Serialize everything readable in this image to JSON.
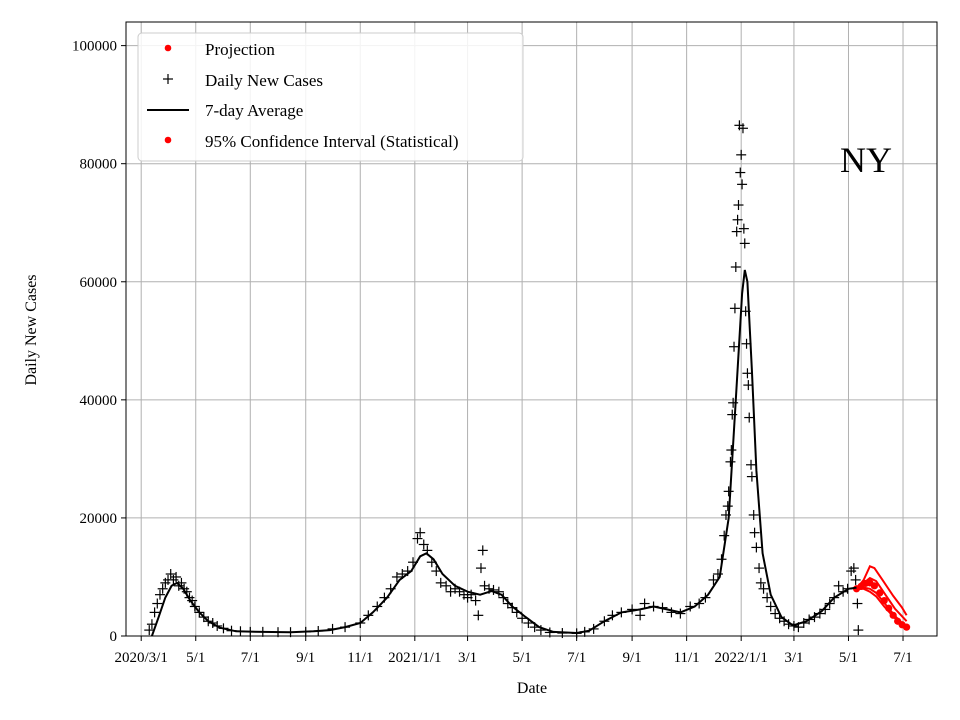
{
  "chart_data": {
    "type": "line",
    "title": "",
    "xlabel": "Date",
    "ylabel": "Daily New Cases",
    "annotation": "NY",
    "grid": true,
    "legend_position": "top-left",
    "xlim": [
      "2020-02-13",
      "2022-08-08"
    ],
    "ylim": [
      0,
      104000
    ],
    "x_ticks": [
      {
        "date": "2020-03-01",
        "label": "2020/3/1"
      },
      {
        "date": "2020-05-01",
        "label": "5/1"
      },
      {
        "date": "2020-07-01",
        "label": "7/1"
      },
      {
        "date": "2020-09-01",
        "label": "9/1"
      },
      {
        "date": "2020-11-01",
        "label": "11/1"
      },
      {
        "date": "2021-01-01",
        "label": "2021/1/1"
      },
      {
        "date": "2021-03-01",
        "label": "3/1"
      },
      {
        "date": "2021-05-01",
        "label": "5/1"
      },
      {
        "date": "2021-07-01",
        "label": "7/1"
      },
      {
        "date": "2021-09-01",
        "label": "9/1"
      },
      {
        "date": "2021-11-01",
        "label": "11/1"
      },
      {
        "date": "2022-01-01",
        "label": "2022/1/1"
      },
      {
        "date": "2022-03-01",
        "label": "3/1"
      },
      {
        "date": "2022-05-01",
        "label": "5/1"
      },
      {
        "date": "2022-07-01",
        "label": "7/1"
      }
    ],
    "y_ticks": [
      0,
      20000,
      40000,
      60000,
      80000,
      100000
    ],
    "legend": [
      {
        "label": "Projection",
        "marker": "dot",
        "color": "#ff0000"
      },
      {
        "label": "Daily New Cases",
        "marker": "plus",
        "color": "#000000"
      },
      {
        "label": "7-day Average",
        "marker": "line",
        "color": "#000000"
      },
      {
        "label": "95% Confidence Interval (Statistical)",
        "marker": "dot",
        "color": "#ff0000"
      }
    ],
    "series": [
      {
        "name": "7-day Average",
        "color": "#000000",
        "points": [
          [
            "2020-03-13",
            0
          ],
          [
            "2020-03-20",
            3000
          ],
          [
            "2020-03-28",
            6500
          ],
          [
            "2020-04-04",
            8500
          ],
          [
            "2020-04-10",
            9000
          ],
          [
            "2020-04-17",
            8000
          ],
          [
            "2020-04-25",
            6000
          ],
          [
            "2020-05-05",
            4000
          ],
          [
            "2020-05-15",
            2500
          ],
          [
            "2020-05-28",
            1400
          ],
          [
            "2020-06-15",
            800
          ],
          [
            "2020-07-15",
            700
          ],
          [
            "2020-08-15",
            650
          ],
          [
            "2020-09-10",
            800
          ],
          [
            "2020-09-28",
            1000
          ],
          [
            "2020-10-15",
            1500
          ],
          [
            "2020-11-01",
            2200
          ],
          [
            "2020-11-15",
            4000
          ],
          [
            "2020-12-01",
            6500
          ],
          [
            "2020-12-15",
            9500
          ],
          [
            "2020-12-28",
            11000
          ],
          [
            "2021-01-07",
            13500
          ],
          [
            "2021-01-14",
            14000
          ],
          [
            "2021-01-22",
            13000
          ],
          [
            "2021-02-01",
            10500
          ],
          [
            "2021-02-15",
            8500
          ],
          [
            "2021-03-01",
            7500
          ],
          [
            "2021-03-15",
            7000
          ],
          [
            "2021-03-28",
            7600
          ],
          [
            "2021-04-08",
            7000
          ],
          [
            "2021-04-20",
            5000
          ],
          [
            "2021-05-05",
            3200
          ],
          [
            "2021-05-20",
            1500
          ],
          [
            "2021-06-05",
            700
          ],
          [
            "2021-07-01",
            500
          ],
          [
            "2021-07-15",
            900
          ],
          [
            "2021-08-01",
            2500
          ],
          [
            "2021-08-20",
            4000
          ],
          [
            "2021-09-10",
            4500
          ],
          [
            "2021-09-25",
            5000
          ],
          [
            "2021-10-10",
            4500
          ],
          [
            "2021-10-25",
            4000
          ],
          [
            "2021-11-10",
            5000
          ],
          [
            "2021-11-25",
            7000
          ],
          [
            "2021-12-08",
            10000
          ],
          [
            "2021-12-18",
            20000
          ],
          [
            "2021-12-26",
            40000
          ],
          [
            "2022-01-02",
            58000
          ],
          [
            "2022-01-05",
            62000
          ],
          [
            "2022-01-08",
            60000
          ],
          [
            "2022-01-13",
            45000
          ],
          [
            "2022-01-18",
            28000
          ],
          [
            "2022-01-25",
            14000
          ],
          [
            "2022-02-03",
            7000
          ],
          [
            "2022-02-15",
            3200
          ],
          [
            "2022-02-28",
            1800
          ],
          [
            "2022-03-15",
            2500
          ],
          [
            "2022-04-01",
            4200
          ],
          [
            "2022-04-15",
            6500
          ],
          [
            "2022-05-01",
            8000
          ],
          [
            "2022-05-10",
            8200
          ]
        ]
      },
      {
        "name": "Daily New Cases",
        "color": "#000000",
        "points": [
          [
            "2020-03-10",
            1000
          ],
          [
            "2020-03-13",
            2000
          ],
          [
            "2020-03-16",
            4000
          ],
          [
            "2020-03-19",
            5500
          ],
          [
            "2020-03-22",
            7000
          ],
          [
            "2020-03-25",
            8000
          ],
          [
            "2020-03-28",
            9000
          ],
          [
            "2020-03-31",
            9500
          ],
          [
            "2020-04-03",
            10500
          ],
          [
            "2020-04-06",
            9500
          ],
          [
            "2020-04-09",
            10000
          ],
          [
            "2020-04-12",
            8500
          ],
          [
            "2020-04-15",
            9000
          ],
          [
            "2020-04-18",
            8000
          ],
          [
            "2020-04-21",
            7500
          ],
          [
            "2020-04-24",
            6500
          ],
          [
            "2020-04-27",
            6000
          ],
          [
            "2020-04-30",
            5000
          ],
          [
            "2020-05-05",
            4000
          ],
          [
            "2020-05-10",
            3200
          ],
          [
            "2020-05-15",
            2500
          ],
          [
            "2020-05-20",
            2200
          ],
          [
            "2020-05-25",
            1700
          ],
          [
            "2020-06-01",
            1300
          ],
          [
            "2020-06-10",
            900
          ],
          [
            "2020-06-20",
            800
          ],
          [
            "2020-07-01",
            700
          ],
          [
            "2020-07-15",
            700
          ],
          [
            "2020-08-01",
            650
          ],
          [
            "2020-08-15",
            650
          ],
          [
            "2020-09-01",
            700
          ],
          [
            "2020-09-15",
            850
          ],
          [
            "2020-10-01",
            1200
          ],
          [
            "2020-10-15",
            1500
          ],
          [
            "2020-11-01",
            2200
          ],
          [
            "2020-11-10",
            3500
          ],
          [
            "2020-11-20",
            5000
          ],
          [
            "2020-11-28",
            6500
          ],
          [
            "2020-12-05",
            8000
          ],
          [
            "2020-12-12",
            10000
          ],
          [
            "2020-12-18",
            10500
          ],
          [
            "2020-12-24",
            11000
          ],
          [
            "2020-12-30",
            12500
          ],
          [
            "2021-01-04",
            16500
          ],
          [
            "2021-01-07",
            17500
          ],
          [
            "2021-01-11",
            15500
          ],
          [
            "2021-01-15",
            14500
          ],
          [
            "2021-01-20",
            12500
          ],
          [
            "2021-01-25",
            11000
          ],
          [
            "2021-01-30",
            9000
          ],
          [
            "2021-02-05",
            8500
          ],
          [
            "2021-02-10",
            7500
          ],
          [
            "2021-02-15",
            8000
          ],
          [
            "2021-02-20",
            7500
          ],
          [
            "2021-02-25",
            7000
          ],
          [
            "2021-03-01",
            6500
          ],
          [
            "2021-03-05",
            7000
          ],
          [
            "2021-03-10",
            6000
          ],
          [
            "2021-03-13",
            3500
          ],
          [
            "2021-03-16",
            11500
          ],
          [
            "2021-03-18",
            14500
          ],
          [
            "2021-03-20",
            8500
          ],
          [
            "2021-03-25",
            8000
          ],
          [
            "2021-03-30",
            7800
          ],
          [
            "2021-04-05",
            7500
          ],
          [
            "2021-04-10",
            6500
          ],
          [
            "2021-04-15",
            5500
          ],
          [
            "2021-04-20",
            4800
          ],
          [
            "2021-04-25",
            4000
          ],
          [
            "2021-05-01",
            3000
          ],
          [
            "2021-05-08",
            2200
          ],
          [
            "2021-05-15",
            1500
          ],
          [
            "2021-05-22",
            1000
          ],
          [
            "2021-06-01",
            600
          ],
          [
            "2021-06-15",
            500
          ],
          [
            "2021-07-01",
            450
          ],
          [
            "2021-07-10",
            700
          ],
          [
            "2021-07-20",
            1200
          ],
          [
            "2021-08-01",
            2500
          ],
          [
            "2021-08-10",
            3500
          ],
          [
            "2021-08-20",
            4000
          ],
          [
            "2021-09-01",
            4500
          ],
          [
            "2021-09-10",
            3500
          ],
          [
            "2021-09-15",
            5500
          ],
          [
            "2021-09-25",
            5000
          ],
          [
            "2021-10-05",
            4800
          ],
          [
            "2021-10-15",
            4000
          ],
          [
            "2021-10-25",
            3800
          ],
          [
            "2021-11-05",
            5000
          ],
          [
            "2021-11-15",
            5500
          ],
          [
            "2021-11-22",
            6500
          ],
          [
            "2021-12-01",
            9500
          ],
          [
            "2021-12-06",
            10500
          ],
          [
            "2021-12-10",
            13000
          ],
          [
            "2021-12-13",
            17000
          ],
          [
            "2021-12-15",
            20500
          ],
          [
            "2021-12-17",
            22000
          ],
          [
            "2021-12-18",
            24500
          ],
          [
            "2021-12-20",
            29500
          ],
          [
            "2021-12-21",
            31500
          ],
          [
            "2021-12-22",
            37500
          ],
          [
            "2021-12-23",
            39500
          ],
          [
            "2021-12-24",
            49000
          ],
          [
            "2021-12-25",
            55500
          ],
          [
            "2021-12-26",
            62500
          ],
          [
            "2021-12-27",
            68500
          ],
          [
            "2021-12-28",
            70500
          ],
          [
            "2021-12-29",
            73000
          ],
          [
            "2021-12-30",
            86500
          ],
          [
            "2021-12-31",
            78500
          ],
          [
            "2022-01-01",
            81500
          ],
          [
            "2022-01-02",
            76500
          ],
          [
            "2022-01-03",
            86000
          ],
          [
            "2022-01-04",
            69000
          ],
          [
            "2022-01-05",
            66500
          ],
          [
            "2022-01-06",
            55000
          ],
          [
            "2022-01-07",
            49500
          ],
          [
            "2022-01-08",
            44500
          ],
          [
            "2022-01-09",
            42500
          ],
          [
            "2022-01-10",
            37000
          ],
          [
            "2022-01-12",
            29000
          ],
          [
            "2022-01-13",
            27000
          ],
          [
            "2022-01-15",
            20500
          ],
          [
            "2022-01-16",
            17500
          ],
          [
            "2022-01-18",
            15000
          ],
          [
            "2022-01-21",
            11500
          ],
          [
            "2022-01-23",
            9000
          ],
          [
            "2022-01-26",
            8000
          ],
          [
            "2022-01-30",
            6500
          ],
          [
            "2022-02-03",
            5000
          ],
          [
            "2022-02-08",
            3800
          ],
          [
            "2022-02-13",
            3000
          ],
          [
            "2022-02-18",
            2500
          ],
          [
            "2022-02-23",
            2000
          ],
          [
            "2022-03-01",
            1700
          ],
          [
            "2022-03-06",
            1500
          ],
          [
            "2022-03-12",
            2200
          ],
          [
            "2022-03-18",
            2800
          ],
          [
            "2022-03-24",
            3200
          ],
          [
            "2022-03-30",
            3800
          ],
          [
            "2022-04-05",
            4500
          ],
          [
            "2022-04-10",
            5500
          ],
          [
            "2022-04-15",
            6500
          ],
          [
            "2022-04-20",
            8500
          ],
          [
            "2022-04-25",
            7500
          ],
          [
            "2022-04-30",
            8000
          ],
          [
            "2022-05-04",
            11000
          ],
          [
            "2022-05-07",
            11500
          ],
          [
            "2022-05-09",
            9500
          ],
          [
            "2022-05-11",
            5500
          ],
          [
            "2022-05-12",
            1000
          ]
        ]
      },
      {
        "name": "Projection",
        "color": "#ff0000",
        "points": [
          [
            "2022-05-10",
            8000
          ],
          [
            "2022-05-15",
            8400
          ],
          [
            "2022-05-20",
            8900
          ],
          [
            "2022-05-25",
            9000
          ],
          [
            "2022-05-30",
            8500
          ],
          [
            "2022-06-05",
            7300
          ],
          [
            "2022-06-10",
            6000
          ],
          [
            "2022-06-15",
            4700
          ],
          [
            "2022-06-20",
            3500
          ],
          [
            "2022-06-25",
            2500
          ],
          [
            "2022-06-30",
            1900
          ],
          [
            "2022-07-05",
            1500
          ]
        ]
      },
      {
        "name": "95% Confidence Interval (Statistical)",
        "color": "#ff0000",
        "bands": [
          [
            [
              "2022-05-10",
              8000
            ],
            [
              "2022-05-18",
              9500
            ],
            [
              "2022-05-25",
              11800
            ],
            [
              "2022-05-30",
              11500
            ],
            [
              "2022-06-08",
              9500
            ],
            [
              "2022-06-20",
              6800
            ],
            [
              "2022-06-30",
              4800
            ],
            [
              "2022-07-05",
              3500
            ]
          ],
          [
            [
              "2022-05-10",
              8000
            ],
            [
              "2022-05-18",
              9000
            ],
            [
              "2022-05-25",
              9800
            ],
            [
              "2022-06-01",
              9300
            ],
            [
              "2022-06-10",
              7300
            ],
            [
              "2022-06-22",
              4600
            ],
            [
              "2022-07-05",
              2500
            ]
          ],
          [
            [
              "2022-05-10",
              8000
            ],
            [
              "2022-05-18",
              8200
            ],
            [
              "2022-05-25",
              8000
            ],
            [
              "2022-06-01",
              7300
            ],
            [
              "2022-06-10",
              5600
            ],
            [
              "2022-06-22",
              3400
            ],
            [
              "2022-07-05",
              1400
            ]
          ],
          [
            [
              "2022-05-10",
              8000
            ],
            [
              "2022-05-18",
              8000
            ],
            [
              "2022-05-25",
              7500
            ],
            [
              "2022-06-01",
              6700
            ],
            [
              "2022-06-10",
              5000
            ],
            [
              "2022-06-22",
              3000
            ],
            [
              "2022-07-05",
              1200
            ]
          ]
        ]
      }
    ]
  }
}
